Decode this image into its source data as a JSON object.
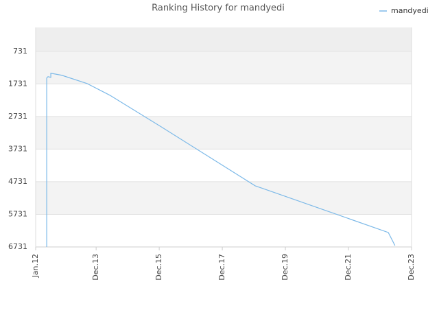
{
  "chart_data": {
    "type": "line",
    "title": "Ranking History for mandyedi",
    "x": [
      2012.35,
      2012.35,
      2012.35,
      2012.39,
      2012.48,
      2012.48,
      2012.83,
      2013.63,
      2014.35,
      2015.98,
      2018.96,
      2023.18,
      2023.39
    ],
    "series": [
      {
        "name": "mandyedi",
        "color": "#7cb9e8",
        "values": [
          6731,
          1783,
          1552,
          1509,
          1530,
          1404,
          1467,
          1720,
          2078,
          3047,
          4857,
          6288,
          6688
        ]
      }
    ],
    "xlim": [
      2012.0,
      2023.917
    ],
    "xticks": [
      {
        "value": 2012.0,
        "label": "Jan.12"
      },
      {
        "value": 2013.917,
        "label": "Dec.13"
      },
      {
        "value": 2015.917,
        "label": "Dec.15"
      },
      {
        "value": 2017.917,
        "label": "Dec.17"
      },
      {
        "value": 2019.917,
        "label": "Dec.19"
      },
      {
        "value": 2021.917,
        "label": "Dec.21"
      },
      {
        "value": 2023.917,
        "label": "Dec.23"
      }
    ],
    "ylim": [
      6731,
      0
    ],
    "yticks": [
      731,
      1731,
      2731,
      3731,
      4731,
      5731,
      6731
    ],
    "grid": true,
    "legend": "top-right"
  }
}
